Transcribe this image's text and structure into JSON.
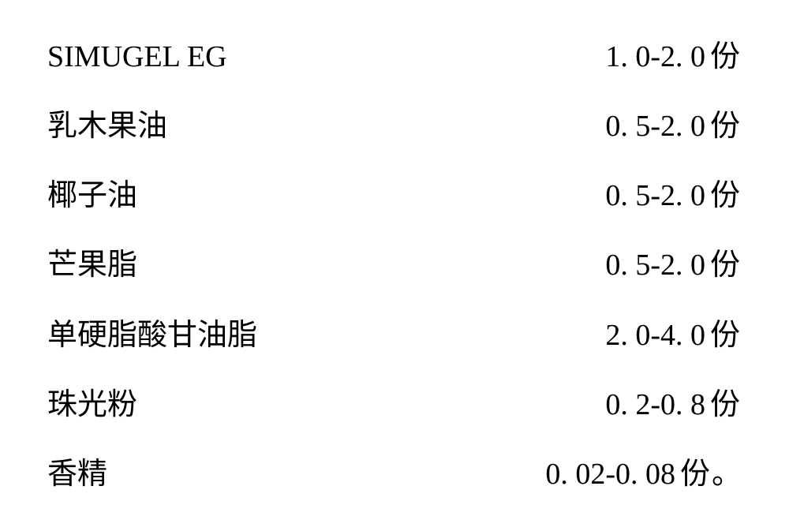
{
  "type": "table",
  "font_family": "SimSun",
  "text_color": "#000000",
  "background_color": "#ffffff",
  "ingredient_fontsize": 38,
  "amount_fontsize": 38,
  "unit_label": "份",
  "period": "。",
  "rows": [
    {
      "ingredient": "SIMUGEL EG",
      "amount": "1. 0-2. 0",
      "trailing": ""
    },
    {
      "ingredient": "乳木果油",
      "amount": "0. 5-2. 0",
      "trailing": ""
    },
    {
      "ingredient": "椰子油",
      "amount": "0. 5-2. 0",
      "trailing": ""
    },
    {
      "ingredient": "芒果脂",
      "amount": "0. 5-2. 0",
      "trailing": ""
    },
    {
      "ingredient": "单硬脂酸甘油脂",
      "amount": "2. 0-4. 0",
      "trailing": ""
    },
    {
      "ingredient": "珠光粉",
      "amount": "0. 2-0. 8",
      "trailing": ""
    },
    {
      "ingredient": "香精",
      "amount": "0. 02-0. 08",
      "trailing": "。"
    }
  ]
}
